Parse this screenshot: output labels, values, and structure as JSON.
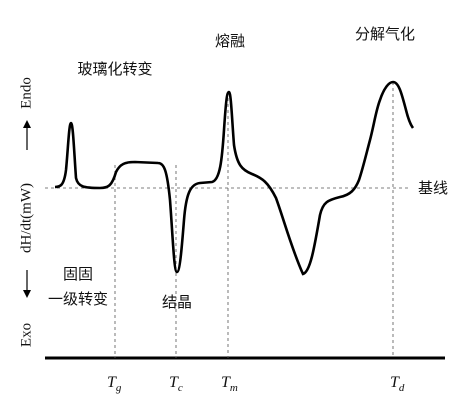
{
  "y_axis": {
    "top": "Endo",
    "middle": "dH/dt(mW)",
    "bottom": "Exo"
  },
  "annotations": {
    "glass_transition": "玻璃化转变",
    "melting": "熔融",
    "decomposition": "分解气化",
    "baseline": "基线",
    "solid_transition": [
      "固固",
      "一级转变"
    ],
    "crystallization": "结晶"
  },
  "x_labels": [
    {
      "symbol": "T",
      "subscript": "g"
    },
    {
      "symbol": "T",
      "subscript": "c"
    },
    {
      "symbol": "T",
      "subscript": "m"
    },
    {
      "symbol": "T",
      "subscript": "d"
    }
  ]
}
